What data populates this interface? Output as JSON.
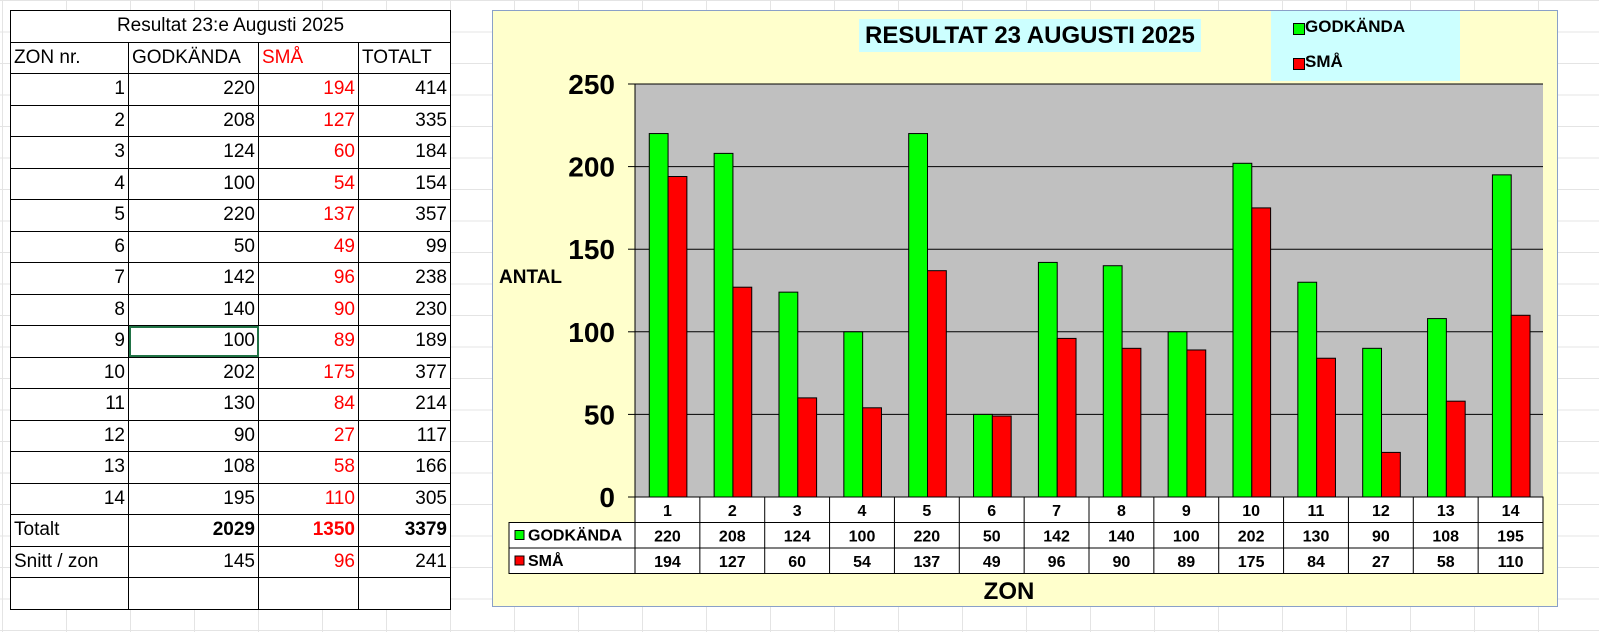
{
  "table": {
    "title": "Resultat 23:e Augusti 2025",
    "headers": [
      "ZON nr.",
      "GODKÄNDA",
      "SMÅ",
      "TOTALT"
    ],
    "rows": [
      [
        "1",
        "220",
        "194",
        "414"
      ],
      [
        "2",
        "208",
        "127",
        "335"
      ],
      [
        "3",
        "124",
        "60",
        "184"
      ],
      [
        "4",
        "100",
        "54",
        "154"
      ],
      [
        "5",
        "220",
        "137",
        "357"
      ],
      [
        "6",
        "50",
        "49",
        "99"
      ],
      [
        "7",
        "142",
        "96",
        "238"
      ],
      [
        "8",
        "140",
        "90",
        "230"
      ],
      [
        "9",
        "100",
        "89",
        "189"
      ],
      [
        "10",
        "202",
        "175",
        "377"
      ],
      [
        "11",
        "130",
        "84",
        "214"
      ],
      [
        "12",
        "90",
        "27",
        "117"
      ],
      [
        "13",
        "108",
        "58",
        "166"
      ],
      [
        "14",
        "195",
        "110",
        "305"
      ]
    ],
    "total": {
      "label": "Totalt",
      "godkanda": "2029",
      "sma": "1350",
      "totalt": "3379"
    },
    "snitt": {
      "label": "Snitt / zon",
      "godkanda": "145",
      "sma": "96",
      "totalt": "241"
    }
  },
  "chart_data": {
    "type": "bar",
    "title": "RESULTAT 23 AUGUSTI 2025",
    "xlabel": "ZON",
    "ylabel": "ANTAL",
    "categories": [
      "1",
      "2",
      "3",
      "4",
      "5",
      "6",
      "7",
      "8",
      "9",
      "10",
      "11",
      "12",
      "13",
      "14"
    ],
    "series": [
      {
        "name": "GODKÄNDA",
        "color": "#00ff00",
        "values": [
          220,
          208,
          124,
          100,
          220,
          50,
          142,
          140,
          100,
          202,
          130,
          90,
          108,
          195
        ]
      },
      {
        "name": "SMÅ",
        "color": "#ff0000",
        "values": [
          194,
          127,
          60,
          54,
          137,
          49,
          96,
          90,
          89,
          175,
          84,
          27,
          58,
          110
        ]
      }
    ],
    "ylim": [
      0,
      250
    ],
    "yticks": [
      0,
      50,
      100,
      150,
      200,
      250
    ],
    "grid": true,
    "legend": "top-right",
    "plot_background": "#c0c0c0",
    "chart_background": "#ffffcc",
    "data_table": true
  }
}
